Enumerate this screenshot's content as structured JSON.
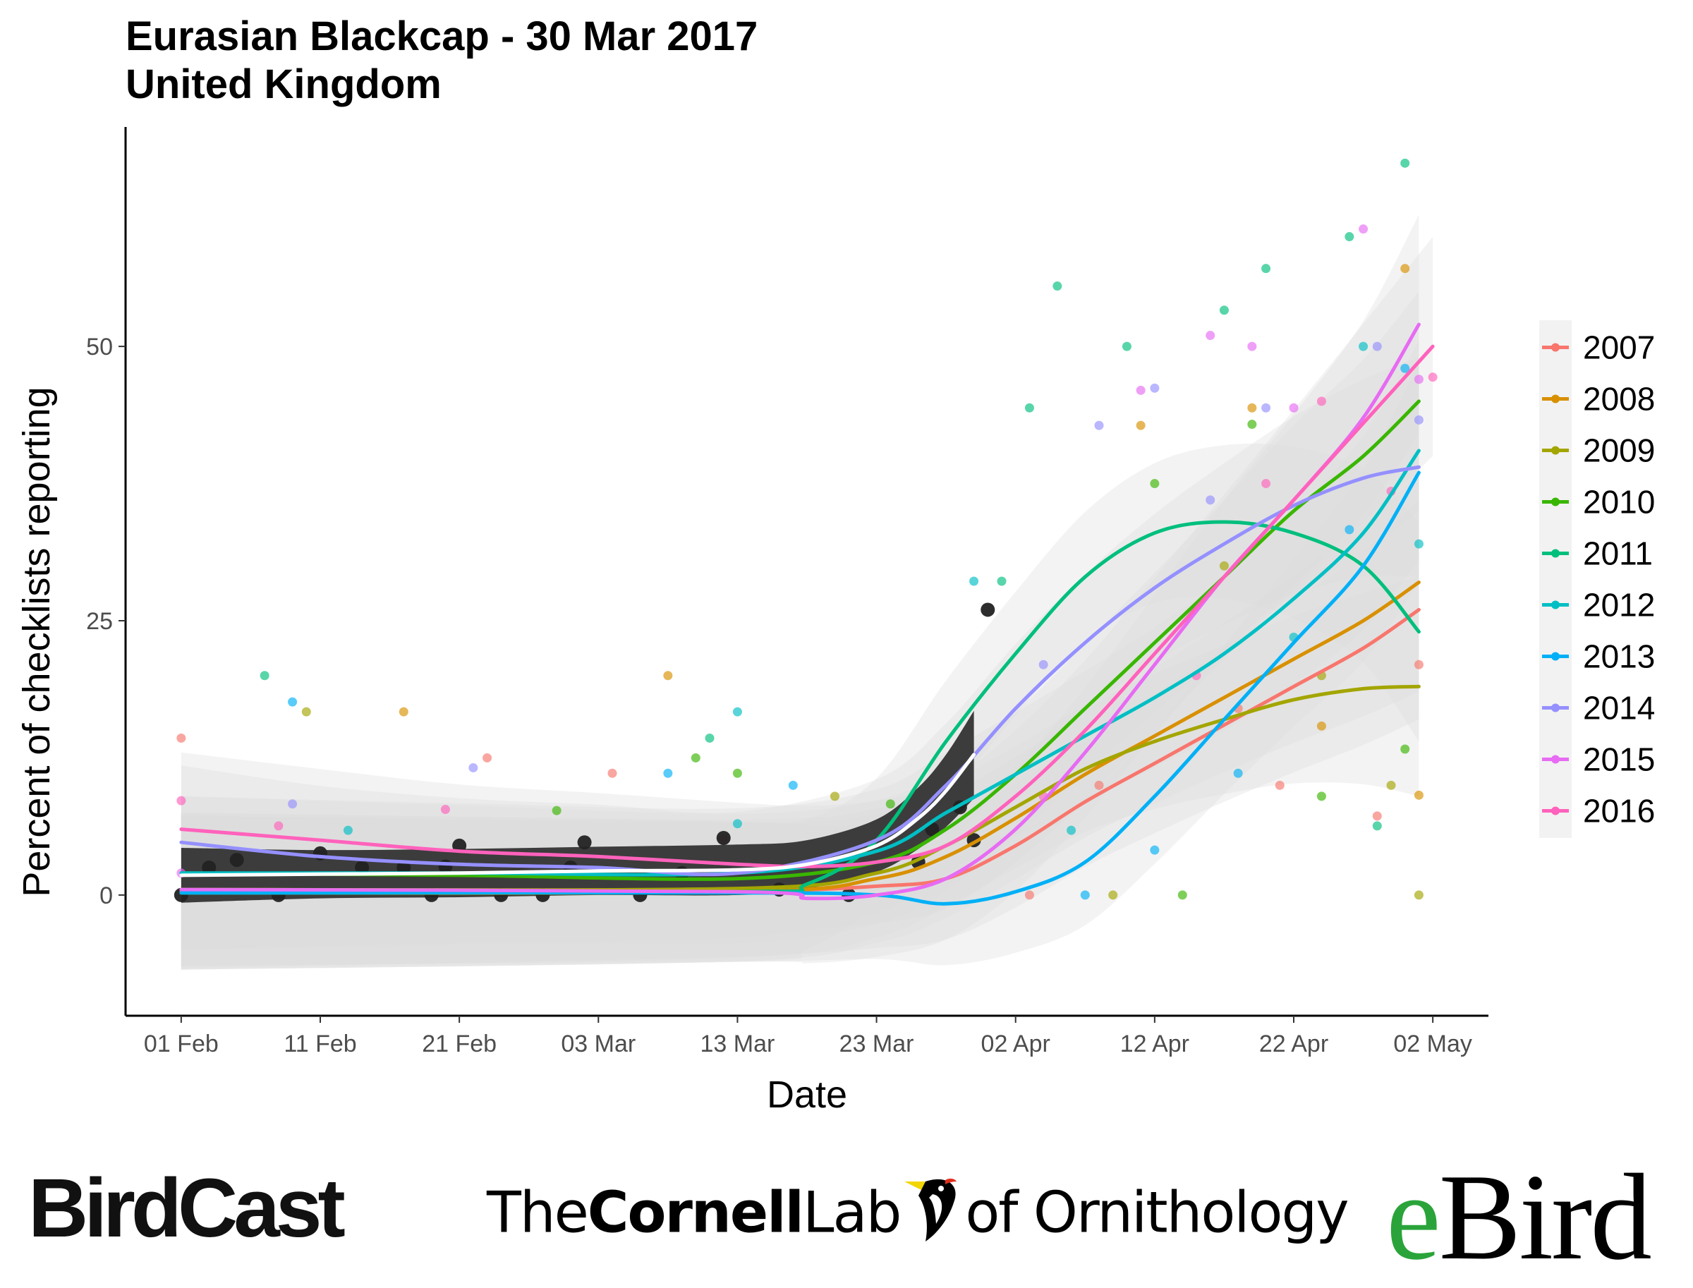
{
  "title": {
    "line1": "Eurasian Blackcap - 30 Mar 2017",
    "line2": "United Kingdom"
  },
  "chart_data": {
    "type": "scatter",
    "xlabel": "Date",
    "ylabel": "Percent of checklists reporting",
    "x_unit": "day of year (2017 calendar)",
    "xlim": [
      "2017-01-28",
      "2017-05-06"
    ],
    "ylim": [
      -11,
      70
    ],
    "x_ticks": [
      {
        "date": "2017-02-01",
        "label": "01 Feb"
      },
      {
        "date": "2017-02-11",
        "label": "11 Feb"
      },
      {
        "date": "2017-02-21",
        "label": "21 Feb"
      },
      {
        "date": "2017-03-03",
        "label": "03 Mar"
      },
      {
        "date": "2017-03-13",
        "label": "13 Mar"
      },
      {
        "date": "2017-03-23",
        "label": "23 Mar"
      },
      {
        "date": "2017-04-02",
        "label": "02 Apr"
      },
      {
        "date": "2017-04-12",
        "label": "12 Apr"
      },
      {
        "date": "2017-04-22",
        "label": "22 Apr"
      },
      {
        "date": "2017-05-02",
        "label": "02 May"
      }
    ],
    "y_ticks": [
      0,
      25,
      50
    ],
    "grid": false,
    "legend_position": "right",
    "series": [
      {
        "name": "2007",
        "color": "#F8766D",
        "trend": [
          [
            "2017-02-01",
            0.3
          ],
          [
            "2017-02-21",
            0.2
          ],
          [
            "2017-03-13",
            0.3
          ],
          [
            "2017-03-23",
            0.8
          ],
          [
            "2017-03-28",
            1.5
          ],
          [
            "2017-04-02",
            4.5
          ],
          [
            "2017-04-07",
            8.5
          ],
          [
            "2017-04-12",
            12
          ],
          [
            "2017-04-17",
            15.5
          ],
          [
            "2017-04-22",
            19
          ],
          [
            "2017-04-27",
            22.5
          ],
          [
            "2017-05-01",
            26
          ]
        ],
        "points": [
          [
            "2017-02-01",
            14.3
          ],
          [
            "2017-02-23",
            12.5
          ],
          [
            "2017-03-04",
            11.1
          ],
          [
            "2017-04-03",
            0
          ],
          [
            "2017-04-08",
            10
          ],
          [
            "2017-04-18",
            17
          ],
          [
            "2017-04-21",
            10
          ],
          [
            "2017-04-28",
            7.2
          ],
          [
            "2017-05-01",
            21
          ]
        ]
      },
      {
        "name": "2008",
        "color": "#D89000",
        "trend": [
          [
            "2017-02-01",
            0.2
          ],
          [
            "2017-03-13",
            0.3
          ],
          [
            "2017-03-23",
            1.5
          ],
          [
            "2017-03-28",
            3.5
          ],
          [
            "2017-04-02",
            7
          ],
          [
            "2017-04-07",
            11
          ],
          [
            "2017-04-12",
            14.5
          ],
          [
            "2017-04-17",
            18
          ],
          [
            "2017-04-22",
            21.5
          ],
          [
            "2017-04-27",
            25
          ],
          [
            "2017-05-01",
            28.5
          ]
        ],
        "points": [
          [
            "2017-02-17",
            16.7
          ],
          [
            "2017-03-08",
            20
          ],
          [
            "2017-04-11",
            42.8
          ],
          [
            "2017-04-19",
            44.4
          ],
          [
            "2017-04-24",
            15.4
          ],
          [
            "2017-04-30",
            57.1
          ],
          [
            "2017-05-01",
            9.1
          ]
        ]
      },
      {
        "name": "2009",
        "color": "#A3A500",
        "trend": [
          [
            "2017-02-01",
            0.5
          ],
          [
            "2017-03-13",
            0.6
          ],
          [
            "2017-03-23",
            2
          ],
          [
            "2017-03-28",
            4.5
          ],
          [
            "2017-04-02",
            8
          ],
          [
            "2017-04-07",
            11.5
          ],
          [
            "2017-04-12",
            14
          ],
          [
            "2017-04-17",
            16
          ],
          [
            "2017-04-22",
            17.8
          ],
          [
            "2017-04-27",
            18.8
          ],
          [
            "2017-05-01",
            19
          ]
        ],
        "points": [
          [
            "2017-02-10",
            16.7
          ],
          [
            "2017-03-20",
            9
          ],
          [
            "2017-04-09",
            0
          ],
          [
            "2017-04-17",
            30
          ],
          [
            "2017-04-24",
            20
          ],
          [
            "2017-04-29",
            10
          ],
          [
            "2017-05-01",
            0
          ]
        ]
      },
      {
        "name": "2010",
        "color": "#39B600",
        "trend": [
          [
            "2017-02-01",
            2
          ],
          [
            "2017-02-21",
            1.8
          ],
          [
            "2017-03-13",
            1.5
          ],
          [
            "2017-03-23",
            3
          ],
          [
            "2017-03-28",
            6
          ],
          [
            "2017-04-02",
            11
          ],
          [
            "2017-04-07",
            17
          ],
          [
            "2017-04-12",
            23
          ],
          [
            "2017-04-17",
            29
          ],
          [
            "2017-04-22",
            35
          ],
          [
            "2017-04-27",
            40
          ],
          [
            "2017-05-01",
            45
          ]
        ],
        "points": [
          [
            "2017-02-28",
            7.7
          ],
          [
            "2017-03-10",
            12.5
          ],
          [
            "2017-03-13",
            11.1
          ],
          [
            "2017-03-24",
            8.3
          ],
          [
            "2017-04-12",
            37.5
          ],
          [
            "2017-04-14",
            0
          ],
          [
            "2017-04-19",
            42.9
          ],
          [
            "2017-04-24",
            9
          ],
          [
            "2017-04-30",
            13.3
          ]
        ]
      },
      {
        "name": "2011",
        "color": "#00BF7D",
        "trend": [
          [
            "2017-02-01",
            0.2
          ],
          [
            "2017-03-13",
            0.3
          ],
          [
            "2017-03-18",
            1
          ],
          [
            "2017-03-23",
            5
          ],
          [
            "2017-03-28",
            14
          ],
          [
            "2017-04-02",
            22
          ],
          [
            "2017-04-07",
            29
          ],
          [
            "2017-04-12",
            33
          ],
          [
            "2017-04-17",
            34
          ],
          [
            "2017-04-22",
            33
          ],
          [
            "2017-04-27",
            30
          ],
          [
            "2017-05-01",
            24
          ]
        ],
        "points": [
          [
            "2017-02-07",
            20
          ],
          [
            "2017-03-11",
            14.3
          ],
          [
            "2017-04-01",
            28.6
          ],
          [
            "2017-04-03",
            44.4
          ],
          [
            "2017-04-05",
            55.5
          ],
          [
            "2017-04-10",
            50
          ],
          [
            "2017-04-17",
            53.3
          ],
          [
            "2017-04-20",
            57.1
          ],
          [
            "2017-04-26",
            60
          ],
          [
            "2017-04-30",
            66.7
          ],
          [
            "2017-04-28",
            6.3
          ]
        ]
      },
      {
        "name": "2012",
        "color": "#00BFC4",
        "trend": [
          [
            "2017-02-01",
            2
          ],
          [
            "2017-02-21",
            2
          ],
          [
            "2017-03-13",
            2
          ],
          [
            "2017-03-23",
            4
          ],
          [
            "2017-03-28",
            7.5
          ],
          [
            "2017-04-02",
            11
          ],
          [
            "2017-04-07",
            14.5
          ],
          [
            "2017-04-12",
            18
          ],
          [
            "2017-04-17",
            22
          ],
          [
            "2017-04-22",
            27
          ],
          [
            "2017-04-27",
            33
          ],
          [
            "2017-05-01",
            40.5
          ]
        ],
        "points": [
          [
            "2017-02-13",
            5.9
          ],
          [
            "2017-03-13",
            16.7
          ],
          [
            "2017-03-13",
            6.5
          ],
          [
            "2017-03-30",
            28.6
          ],
          [
            "2017-04-06",
            5.9
          ],
          [
            "2017-04-22",
            23.5
          ],
          [
            "2017-04-27",
            50
          ],
          [
            "2017-05-01",
            32
          ]
        ]
      },
      {
        "name": "2013",
        "color": "#00B0F6",
        "trend": [
          [
            "2017-02-01",
            0.2
          ],
          [
            "2017-03-13",
            0.2
          ],
          [
            "2017-03-23",
            0
          ],
          [
            "2017-03-28",
            -0.8
          ],
          [
            "2017-04-02",
            0.3
          ],
          [
            "2017-04-07",
            3
          ],
          [
            "2017-04-12",
            9
          ],
          [
            "2017-04-17",
            16
          ],
          [
            "2017-04-22",
            23
          ],
          [
            "2017-04-27",
            30
          ],
          [
            "2017-05-01",
            38.5
          ]
        ],
        "points": [
          [
            "2017-02-09",
            17.6
          ],
          [
            "2017-03-08",
            11.1
          ],
          [
            "2017-03-17",
            10
          ],
          [
            "2017-04-07",
            0
          ],
          [
            "2017-04-12",
            4.1
          ],
          [
            "2017-04-18",
            11.1
          ],
          [
            "2017-04-26",
            33.3
          ],
          [
            "2017-04-30",
            48
          ]
        ]
      },
      {
        "name": "2014",
        "color": "#9590FF",
        "trend": [
          [
            "2017-02-01",
            4.8
          ],
          [
            "2017-02-11",
            3.5
          ],
          [
            "2017-02-21",
            2.8
          ],
          [
            "2017-03-03",
            2.5
          ],
          [
            "2017-03-13",
            2
          ],
          [
            "2017-03-23",
            5
          ],
          [
            "2017-03-28",
            10
          ],
          [
            "2017-04-02",
            17
          ],
          [
            "2017-04-07",
            23
          ],
          [
            "2017-04-12",
            28
          ],
          [
            "2017-04-17",
            32
          ],
          [
            "2017-04-22",
            35.5
          ],
          [
            "2017-04-27",
            38
          ],
          [
            "2017-05-01",
            39
          ]
        ],
        "points": [
          [
            "2017-02-09",
            8.3
          ],
          [
            "2017-02-22",
            11.6
          ],
          [
            "2017-04-04",
            21
          ],
          [
            "2017-04-08",
            42.8
          ],
          [
            "2017-04-12",
            46.2
          ],
          [
            "2017-04-16",
            36
          ],
          [
            "2017-04-20",
            44.4
          ],
          [
            "2017-04-28",
            50
          ],
          [
            "2017-05-01",
            43.3
          ]
        ]
      },
      {
        "name": "2015",
        "color": "#E76BF3",
        "trend": [
          [
            "2017-02-01",
            0.5
          ],
          [
            "2017-03-13",
            0.3
          ],
          [
            "2017-03-18",
            -0.3
          ],
          [
            "2017-03-23",
            0
          ],
          [
            "2017-03-28",
            1.5
          ],
          [
            "2017-04-02",
            6
          ],
          [
            "2017-04-07",
            13
          ],
          [
            "2017-04-12",
            21
          ],
          [
            "2017-04-17",
            29
          ],
          [
            "2017-04-22",
            36
          ],
          [
            "2017-04-27",
            43.5
          ],
          [
            "2017-05-01",
            52
          ]
        ],
        "points": [
          [
            "2017-02-01",
            2
          ],
          [
            "2017-04-11",
            46
          ],
          [
            "2017-04-16",
            51
          ],
          [
            "2017-04-19",
            50
          ],
          [
            "2017-04-22",
            44.4
          ],
          [
            "2017-04-27",
            60.7
          ],
          [
            "2017-05-01",
            47
          ]
        ]
      },
      {
        "name": "2016",
        "color": "#FF62BC",
        "trend": [
          [
            "2017-02-01",
            6
          ],
          [
            "2017-02-11",
            5
          ],
          [
            "2017-02-21",
            4
          ],
          [
            "2017-03-03",
            3.5
          ],
          [
            "2017-03-13",
            2.8
          ],
          [
            "2017-03-18",
            2.6
          ],
          [
            "2017-03-23",
            3
          ],
          [
            "2017-03-28",
            4.5
          ],
          [
            "2017-04-02",
            9
          ],
          [
            "2017-04-07",
            15
          ],
          [
            "2017-04-12",
            22
          ],
          [
            "2017-04-17",
            29
          ],
          [
            "2017-04-22",
            36
          ],
          [
            "2017-04-27",
            43
          ],
          [
            "2017-05-02",
            50
          ]
        ],
        "points": [
          [
            "2017-02-01",
            8.6
          ],
          [
            "2017-02-08",
            6.3
          ],
          [
            "2017-02-20",
            7.8
          ],
          [
            "2017-03-12",
            5.1
          ],
          [
            "2017-04-04",
            9
          ],
          [
            "2017-04-15",
            20
          ],
          [
            "2017-04-20",
            37.5
          ],
          [
            "2017-04-24",
            45
          ],
          [
            "2017-04-29",
            36.8
          ],
          [
            "2017-05-02",
            47.2
          ]
        ]
      },
      {
        "name": "2017",
        "color": "#222222",
        "in_legend": false,
        "trend": [
          [
            "2017-02-01",
            1.8
          ],
          [
            "2017-02-11",
            1.9
          ],
          [
            "2017-02-21",
            2
          ],
          [
            "2017-03-03",
            2.2
          ],
          [
            "2017-03-13",
            2.3
          ],
          [
            "2017-03-18",
            2.8
          ],
          [
            "2017-03-23",
            4.5
          ],
          [
            "2017-03-26",
            7
          ],
          [
            "2017-03-28",
            9.5
          ],
          [
            "2017-03-30",
            12.8
          ]
        ],
        "band_halfwidth": [
          2.5,
          2.2,
          2.2,
          2.2,
          2.3,
          2.2,
          2.4,
          2.8,
          3.3,
          4.0
        ],
        "points": [
          [
            "2017-02-01",
            0
          ],
          [
            "2017-02-03",
            2.5
          ],
          [
            "2017-02-05",
            3.2
          ],
          [
            "2017-02-08",
            0
          ],
          [
            "2017-02-11",
            3.8
          ],
          [
            "2017-02-14",
            2.5
          ],
          [
            "2017-02-17",
            2.5
          ],
          [
            "2017-02-19",
            0
          ],
          [
            "2017-02-20",
            2.6
          ],
          [
            "2017-02-21",
            4.5
          ],
          [
            "2017-02-24",
            0
          ],
          [
            "2017-02-27",
            0
          ],
          [
            "2017-03-01",
            2.5
          ],
          [
            "2017-03-02",
            4.8
          ],
          [
            "2017-03-06",
            0
          ],
          [
            "2017-03-09",
            2
          ],
          [
            "2017-03-12",
            5.2
          ],
          [
            "2017-03-16",
            0.5
          ],
          [
            "2017-03-21",
            0
          ],
          [
            "2017-03-26",
            3
          ],
          [
            "2017-03-27",
            6
          ],
          [
            "2017-03-29",
            8
          ],
          [
            "2017-03-30",
            5
          ],
          [
            "2017-03-31",
            26
          ]
        ]
      }
    ]
  }
}
